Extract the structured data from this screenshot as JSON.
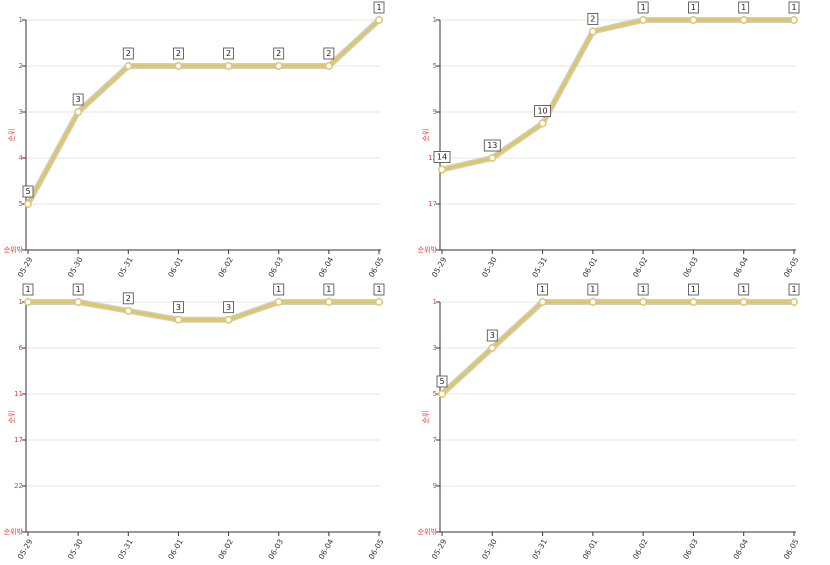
{
  "chart_data": [
    {
      "type": "line",
      "y_label": "순위",
      "y_inverted": true,
      "grid": true,
      "color": "#dcc76a",
      "categories": [
        "05-29",
        "05-30",
        "05-31",
        "06-01",
        "06-02",
        "06-03",
        "06-04",
        "06-05"
      ],
      "values": [
        5,
        3,
        2,
        2,
        2,
        2,
        2,
        1
      ],
      "ylim": [
        1,
        6
      ],
      "yticks": [
        1,
        2,
        3,
        4,
        5,
        {
          "value": 6,
          "label": "순위밖"
        }
      ]
    },
    {
      "type": "line",
      "y_label": "순위",
      "y_inverted": true,
      "grid": true,
      "color": "#dcc76a",
      "categories": [
        "05-29",
        "05-30",
        "05-31",
        "06-01",
        "06-02",
        "06-03",
        "06-04",
        "06-05"
      ],
      "values": [
        14,
        13,
        10,
        2,
        1,
        1,
        1,
        1
      ],
      "ylim": [
        1,
        21
      ],
      "yticks": [
        1,
        5,
        9,
        13,
        17,
        {
          "value": 21,
          "label": "순위밖"
        }
      ]
    },
    {
      "type": "line",
      "y_label": "순위",
      "y_inverted": true,
      "grid": true,
      "color": "#dcc76a",
      "categories": [
        "05-29",
        "05-30",
        "05-31",
        "06-01",
        "06-02",
        "06-03",
        "06-04",
        "06-05"
      ],
      "values": [
        1,
        1,
        2,
        3,
        3,
        1,
        1,
        1
      ],
      "ylim": [
        1,
        27
      ],
      "yticks": [
        1,
        {
          "value": 6.2,
          "label": "6"
        },
        {
          "value": 11.4,
          "label": "11"
        },
        {
          "value": 16.6,
          "label": "17"
        },
        {
          "value": 21.8,
          "label": "22"
        },
        {
          "value": 27,
          "label": "순위밖"
        }
      ]
    },
    {
      "type": "line",
      "y_label": "순위",
      "y_inverted": true,
      "grid": true,
      "color": "#dcc76a",
      "categories": [
        "05-29",
        "05-30",
        "05-31",
        "06-01",
        "06-02",
        "06-03",
        "06-04",
        "06-05"
      ],
      "values": [
        5,
        3,
        1,
        1,
        1,
        1,
        1,
        1
      ],
      "ylim": [
        1,
        11
      ],
      "yticks": [
        1,
        3,
        5,
        7,
        9,
        {
          "value": 11,
          "label": "순위밖"
        }
      ]
    }
  ]
}
